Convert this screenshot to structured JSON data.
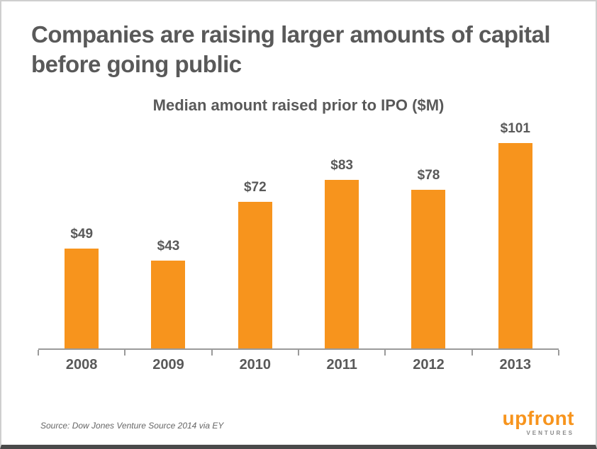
{
  "slide": {
    "title": "Companies are raising larger amounts of capital before going public",
    "source": "Source: Dow Jones Venture Source 2014 via EY",
    "logo": {
      "word": "upfront",
      "tagline": "VENTURES"
    }
  },
  "colors": {
    "bar": "#F7941D",
    "title_text": "#595959",
    "axis": "#9a9a9a",
    "logo_orange": "#F7941D"
  },
  "chart_data": {
    "type": "bar",
    "title": "Median amount raised prior to IPO ($M)",
    "categories": [
      "2008",
      "2009",
      "2010",
      "2011",
      "2012",
      "2013"
    ],
    "values": [
      49,
      43,
      72,
      83,
      78,
      101
    ],
    "value_labels": [
      "$49",
      "$43",
      "$72",
      "$83",
      "$78",
      "$101"
    ],
    "xlabel": "",
    "ylabel": "",
    "ylim": [
      0,
      110
    ],
    "grid": false,
    "legend": false
  }
}
